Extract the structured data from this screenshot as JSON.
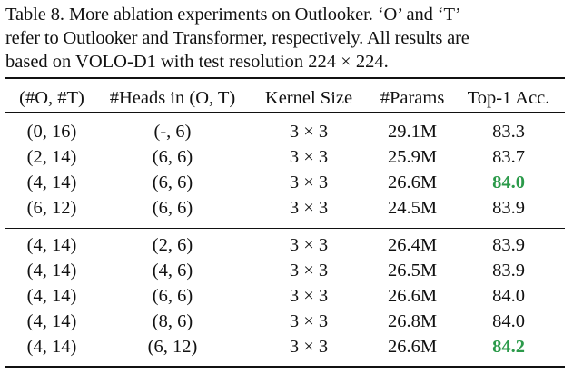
{
  "caption": {
    "line1": "Table 8. More ablation experiments on Outlooker. ‘O’ and ‘T’",
    "line2": "refer to Outlooker and Transformer, respectively. All results are",
    "line3": "based on VOLO-D1 with test resolution 224 × 224."
  },
  "table": {
    "headers": [
      "(#O, #T)",
      "#Heads in (O, T)",
      "Kernel Size",
      "#Params",
      "Top-1 Acc."
    ],
    "group1": [
      {
        "cells": [
          "(0, 16)",
          "(-, 6)",
          "3 × 3",
          "29.1M",
          "83.3"
        ],
        "highlight": false
      },
      {
        "cells": [
          "(2, 14)",
          "(6, 6)",
          "3 × 3",
          "25.9M",
          "83.7"
        ],
        "highlight": false
      },
      {
        "cells": [
          "(4, 14)",
          "(6, 6)",
          "3 × 3",
          "26.6M",
          "84.0"
        ],
        "highlight": true
      },
      {
        "cells": [
          "(6, 12)",
          "(6, 6)",
          "3 × 3",
          "24.5M",
          "83.9"
        ],
        "highlight": false
      }
    ],
    "group2": [
      {
        "cells": [
          "(4, 14)",
          "(2, 6)",
          "3 × 3",
          "26.4M",
          "83.9"
        ],
        "highlight": false
      },
      {
        "cells": [
          "(4, 14)",
          "(4, 6)",
          "3 × 3",
          "26.5M",
          "83.9"
        ],
        "highlight": false
      },
      {
        "cells": [
          "(4, 14)",
          "(6, 6)",
          "3 × 3",
          "26.6M",
          "84.0"
        ],
        "highlight": false
      },
      {
        "cells": [
          "(4, 14)",
          "(8, 6)",
          "3 × 3",
          "26.8M",
          "84.0"
        ],
        "highlight": false
      },
      {
        "cells": [
          "(4, 14)",
          "(6, 12)",
          "3 × 3",
          "26.6M",
          "84.2"
        ],
        "highlight": true
      }
    ],
    "highlight_color": "#2b9a4a"
  }
}
